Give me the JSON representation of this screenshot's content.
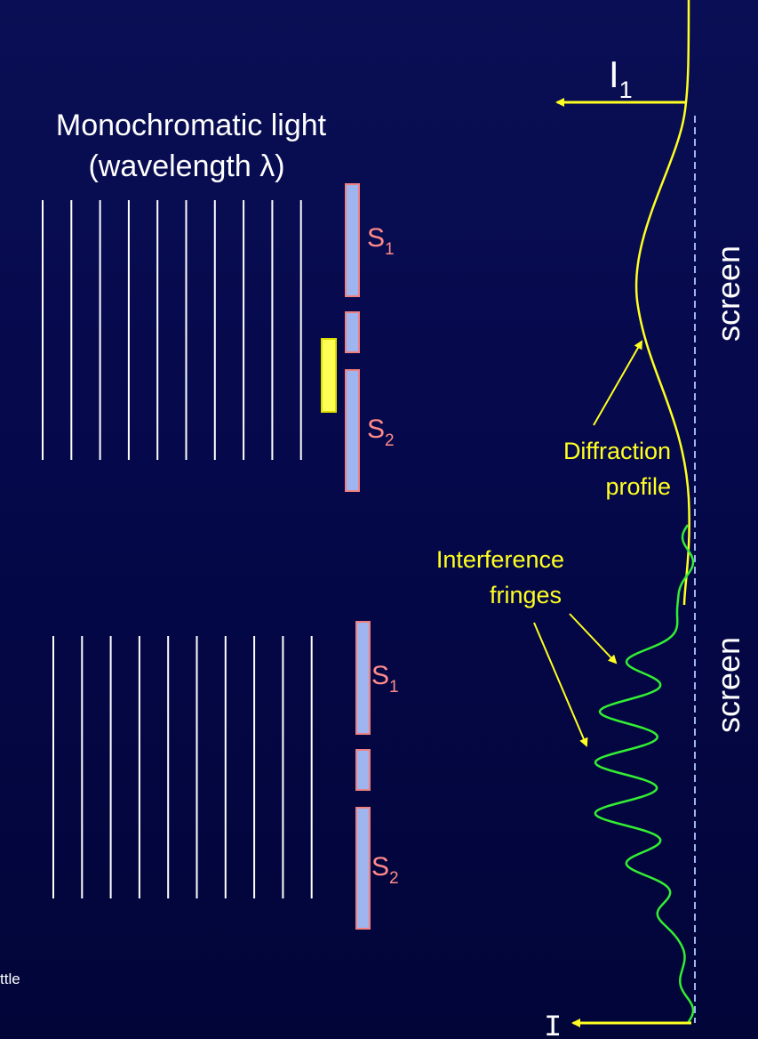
{
  "title_line1": "Monochromatic light",
  "title_line2": "(wavelength λ)",
  "intensity_top_label": "I",
  "intensity_top_sub": "1",
  "intensity_bottom_label": "I",
  "screen_label_top": "screen",
  "screen_label_bottom": "screen",
  "slit_top_1": "S",
  "slit_top_1_sub": "1",
  "slit_top_2": "S",
  "slit_top_2_sub": "2",
  "slit_bottom_1": "S",
  "slit_bottom_1_sub": "1",
  "slit_bottom_2": "S",
  "slit_bottom_2_sub": "2",
  "diffraction_label_line1": "Diffraction",
  "diffraction_label_line2": "profile",
  "interference_label_line1": "Interference",
  "interference_label_line2": "fringes",
  "footer_text": "ttle",
  "colors": {
    "wave": "#ffffff",
    "slit_fill": "#9fb5f0",
    "slit_border": "#f08080",
    "slit_label": "#ff8a8a",
    "yellow": "#ffff22",
    "green": "#33ee33",
    "screen_dash": "#9fb5f0",
    "text": "#ffffff"
  }
}
